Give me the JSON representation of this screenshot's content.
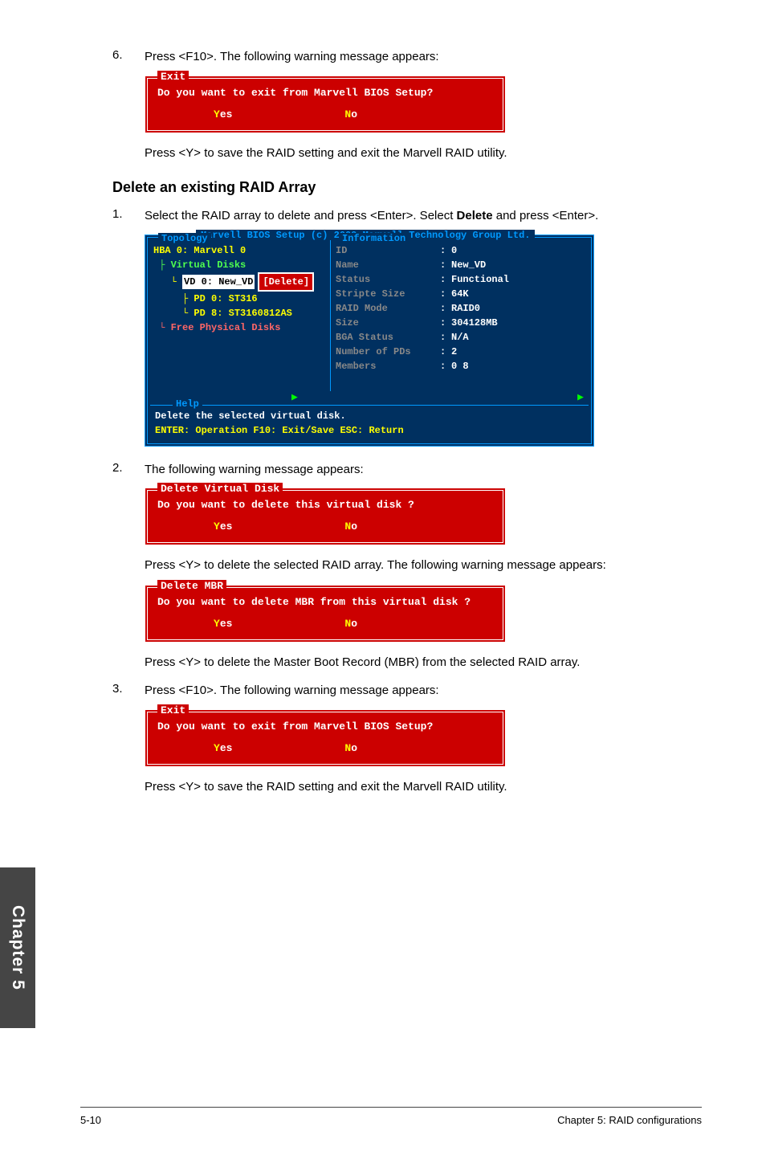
{
  "step6": {
    "num": "6.",
    "text": "Press <F10>. The following warning message appears:"
  },
  "exit_dialog": {
    "title": "Exit",
    "msg": "Do you want to exit from Marvell BIOS Setup?",
    "yes_hl": "Y",
    "yes_rest": "es",
    "no_hl": "N",
    "no_rest": "o"
  },
  "step6_after": "Press <Y> to save the RAID setting and exit the Marvell RAID utility.",
  "section_title": "Delete an existing RAID Array",
  "step1": {
    "num": "1.",
    "text": "Select the RAID array to delete and press <Enter>. Select ",
    "bold": "Delete",
    "text2": " and press <Enter>."
  },
  "bios": {
    "title": "Marvell BIOS Setup (c) 2009 Marvell Technology Group Ltd.",
    "topology_title": "Topology",
    "info_title": "Information",
    "help_title": "Help",
    "tree": {
      "hba": "HBA 0: Marvell 0",
      "vdisks": "Virtual Disks",
      "vd0": "VD 0: New_VD",
      "delete_label": "[Delete]",
      "pd0": "PD 0: ST316",
      "pd8": "PD 8: ST3160812AS",
      "free": "Free Physical Disks"
    },
    "info": [
      {
        "label": "ID",
        "val": "0",
        "cls": "white"
      },
      {
        "label": "Name",
        "val": "New_VD",
        "cls": "white"
      },
      {
        "label": "Status",
        "val": "Functional",
        "cls": "white"
      },
      {
        "label": "Stripte Size",
        "val": "64K",
        "cls": "white"
      },
      {
        "label": "RAID Mode",
        "val": "RAID0",
        "cls": "white"
      },
      {
        "label": "Size",
        "val": "304128MB",
        "cls": "white"
      },
      {
        "label": "BGA Status",
        "val": "N/A",
        "cls": "white"
      },
      {
        "label": "Number of PDs",
        "val": "2",
        "cls": "white"
      },
      {
        "label": "Members",
        "val": "0 8",
        "cls": "white"
      }
    ],
    "help_line1": "Delete the selected virtual disk.",
    "help_line2": "ENTER: Operation   F10: Exit/Save   ESC: Return"
  },
  "step2": {
    "num": "2.",
    "text": "The following warning message appears:"
  },
  "del_vd_dialog": {
    "title": "Delete Virtual Disk",
    "msg": "Do you want to delete this virtual disk ?",
    "yes_hl": "Y",
    "yes_rest": "es",
    "no_hl": "N",
    "no_rest": "o"
  },
  "step2_after": "Press <Y> to delete the selected RAID array. The following warning message appears:",
  "del_mbr_dialog": {
    "title": "Delete MBR",
    "msg": "Do you want to delete MBR from this virtual disk ?",
    "yes_hl": "Y",
    "yes_rest": "es",
    "no_hl": "N",
    "no_rest": "o"
  },
  "step2_after2": "Press <Y> to delete the Master Boot Record (MBR) from the selected RAID array.",
  "step3": {
    "num": "3.",
    "text": "Press <F10>. The following warning message appears:"
  },
  "exit_dialog2": {
    "title": "Exit",
    "msg": "Do you want to exit from Marvell BIOS Setup?",
    "yes_hl": "Y",
    "yes_rest": "es",
    "no_hl": "N",
    "no_rest": "o"
  },
  "step3_after": "Press <Y> to save the RAID setting and exit the Marvell RAID utility.",
  "side_tab": "Chapter 5",
  "footer": {
    "left": "5-10",
    "right": "Chapter 5: RAID configurations"
  }
}
